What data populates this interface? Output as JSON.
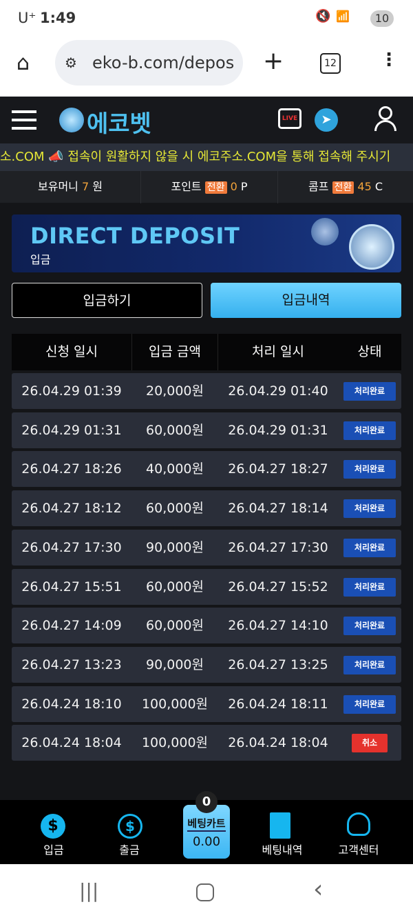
{
  "status_bar": {
    "carrier": "U⁺",
    "time": "1:49",
    "battery": "10"
  },
  "browser": {
    "url": "eko-b.com/depos",
    "tab_count": "12"
  },
  "header": {
    "logo": "에코벳",
    "live_badge": "LIVE"
  },
  "ticker": {
    "text": "소.COM 📣 접속이 원활하지 않을 시 에코주소.COM을 통해 접속해 주시기"
  },
  "balance": {
    "money_label": "보유머니",
    "money_value": "7",
    "money_unit": "원",
    "point_label": "포인트",
    "point_convert": "전환",
    "point_value": "0",
    "point_unit": "P",
    "comp_label": "콤프",
    "comp_convert": "전환",
    "comp_value": "45",
    "comp_unit": "C"
  },
  "banner": {
    "title": "DIRECT DEPOSIT",
    "subtitle": "입금"
  },
  "tabs": {
    "deposit": "입금하기",
    "history": "입금내역"
  },
  "table": {
    "headers": [
      "신청 일시",
      "입금 금액",
      "처리 일시",
      "상태"
    ],
    "rows": [
      [
        "26.04.29 01:39",
        "20,000원",
        "26.04.29 01:40",
        "처리완료"
      ],
      [
        "26.04.29 01:31",
        "60,000원",
        "26.04.29 01:31",
        "처리완료"
      ],
      [
        "26.04.27 18:26",
        "40,000원",
        "26.04.27 18:27",
        "처리완료"
      ],
      [
        "26.04.27 18:12",
        "60,000원",
        "26.04.27 18:14",
        "처리완료"
      ],
      [
        "26.04.27 17:30",
        "90,000원",
        "26.04.27 17:30",
        "처리완료"
      ],
      [
        "26.04.27 15:51",
        "60,000원",
        "26.04.27 15:52",
        "처리완료"
      ],
      [
        "26.04.27 14:09",
        "60,000원",
        "26.04.27 14:10",
        "처리완료"
      ],
      [
        "26.04.27 13:23",
        "90,000원",
        "26.04.27 13:25",
        "처리완료"
      ],
      [
        "26.04.24 18:10",
        "100,000원",
        "26.04.24 18:11",
        "처리완료"
      ],
      [
        "26.04.24 18:04",
        "100,000원",
        "26.04.24 18:04",
        "취소"
      ]
    ]
  },
  "bottom_nav": {
    "deposit": "입금",
    "withdraw": "출금",
    "cart_label": "베팅카트",
    "cart_value": "0.00",
    "cart_count": "0",
    "bet_history": "베팅내역",
    "support": "고객센터"
  },
  "colors": {
    "accent": "#35b5f0",
    "status_done": "#1a4fb5",
    "status_cancel": "#e5322d",
    "ticker": "#e6e836"
  }
}
